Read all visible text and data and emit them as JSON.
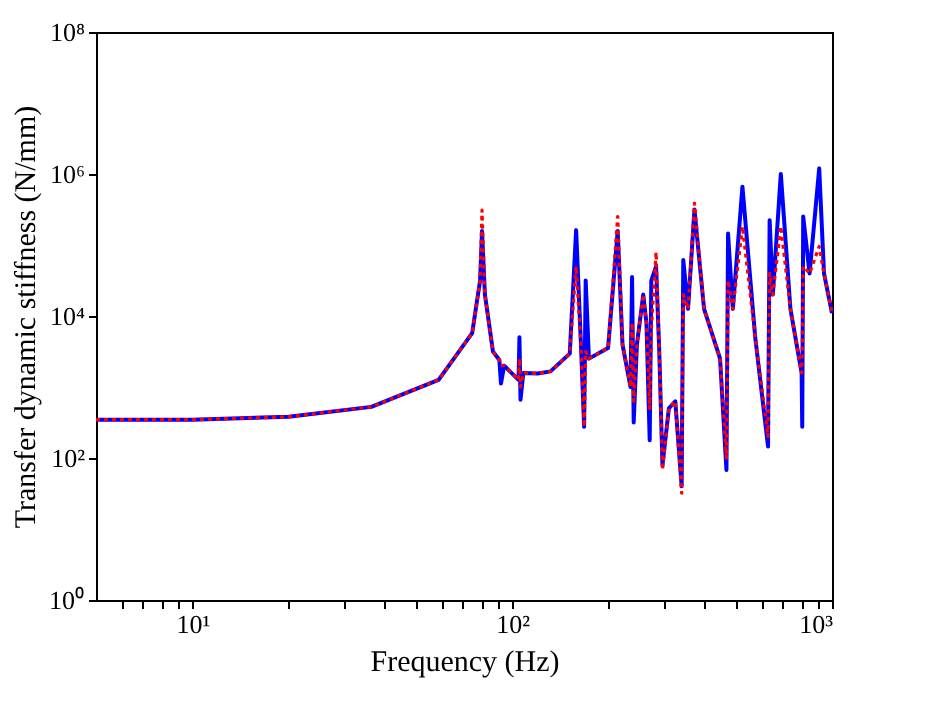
{
  "chart_data": {
    "type": "line",
    "xlabel": "Frequency (Hz)",
    "ylabel": "Transfer dynamic stiffness (N/mm)",
    "log": "xy",
    "grid": false,
    "x": [
      5,
      10,
      20,
      36.3,
      58.9,
      75,
      79.4,
      80.5,
      82.2,
      87.1,
      91.2,
      92.3,
      94.4,
      104.7,
      105.4,
      106.2,
      108.4,
      120.2,
      131.8,
      151.4,
      158.5,
      164.1,
      167.9,
      169.8,
      173.8,
      199.5,
      213.8,
      221.3,
      234.4,
      237.1,
      239.9,
      245.5,
      257,
      263,
      269.2,
      272.3,
      281.8,
      288.4,
      295.1,
      309,
      323.6,
      338.8,
      342.8,
      354.8,
      371.5,
      398.1,
      446.7,
      467.7,
      473.2,
      489.8,
      524.8,
      575.4,
      631,
      638.3,
      653.1,
      691.8,
      741.3,
      803.5,
      807.2,
      812.8,
      851.1,
      912,
      944,
      1000
    ],
    "series": [
      {
        "color": "#0000ff",
        "line_style": "solid",
        "values": [
          347,
          347,
          380,
          525,
          1260,
          5750,
          31600,
          158000,
          20000,
          3160,
          2400,
          1120,
          2000,
          1260,
          5000,
          660,
          1580,
          1550,
          1660,
          2950,
          162000,
          3980,
          275,
          31600,
          2510,
          3550,
          158000,
          3980,
          1000,
          35500,
          316,
          3980,
          20000,
          7940,
          178,
          31600,
          50100,
          3160,
          79,
          500,
          630,
          40,
          61700,
          12600,
          316000,
          12600,
          2510,
          68,
          145000,
          12600,
          661000,
          5000,
          145,
          224000,
          20000,
          1000000,
          12600,
          1580,
          275,
          251000,
          39800,
          1200000,
          39800,
          11000
        ]
      },
      {
        "color": "#ff0000",
        "line_style": "dotted",
        "values": [
          347,
          347,
          380,
          525,
          1260,
          5750,
          31600,
          309000,
          20000,
          3160,
          2400,
          2000,
          2000,
          1260,
          2510,
          1000,
          1580,
          1550,
          1660,
          2950,
          50100,
          3980,
          275,
          3160,
          2510,
          3550,
          251000,
          3980,
          1000,
          7940,
          630,
          3980,
          20000,
          7940,
          500,
          6310,
          79400,
          3160,
          68,
          500,
          630,
          32,
          20000,
          12600,
          389000,
          12600,
          2510,
          100,
          31600,
          12600,
          182000,
          5000,
          200,
          39800,
          20000,
          182000,
          12600,
          1580,
          3160,
          50100,
          39800,
          95500,
          39800,
          11000
        ]
      }
    ],
    "xlim": [
      5,
      1000
    ],
    "xticks": [
      {
        "value": 6,
        "label": null
      },
      {
        "value": 7,
        "label": null
      },
      {
        "value": 8,
        "label": null
      },
      {
        "value": 9,
        "label": null
      },
      {
        "value": 10,
        "label": "10¹"
      },
      {
        "value": 20,
        "label": null
      },
      {
        "value": 30,
        "label": null
      },
      {
        "value": 40,
        "label": null
      },
      {
        "value": 50,
        "label": null
      },
      {
        "value": 60,
        "label": null
      },
      {
        "value": 70,
        "label": null
      },
      {
        "value": 80,
        "label": null
      },
      {
        "value": 90,
        "label": null
      },
      {
        "value": 100,
        "label": "10²"
      },
      {
        "value": 200,
        "label": null
      },
      {
        "value": 300,
        "label": null
      },
      {
        "value": 400,
        "label": null
      },
      {
        "value": 500,
        "label": null
      },
      {
        "value": 600,
        "label": null
      },
      {
        "value": 700,
        "label": null
      },
      {
        "value": 800,
        "label": null
      },
      {
        "value": 900,
        "label": null
      },
      {
        "value": 1000,
        "label": "10³"
      }
    ],
    "ylim": [
      1,
      100000000
    ],
    "yticks": [
      {
        "value": 1,
        "label": "10⁰"
      },
      {
        "value": 100,
        "label": "10²"
      },
      {
        "value": 10000,
        "label": "10⁴"
      },
      {
        "value": 1000000,
        "label": "10⁶"
      },
      {
        "value": 100000000,
        "label": "10⁸"
      }
    ]
  }
}
